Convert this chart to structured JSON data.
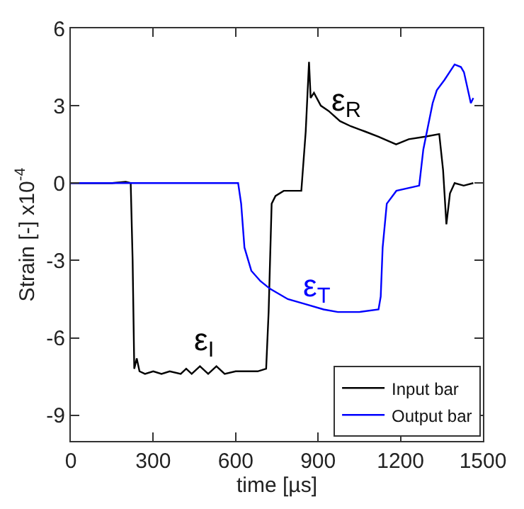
{
  "chart_data": {
    "type": "line",
    "xlabel": "time [µs]",
    "ylabel": "Strain [-] x10$^{-4}$",
    "xlim": [
      0,
      1500
    ],
    "ylim": [
      -10,
      6
    ],
    "xticks": [
      0,
      300,
      600,
      900,
      1200,
      1500
    ],
    "yticks": [
      -9,
      -6,
      -3,
      0,
      3,
      6
    ],
    "legend": "bottom right",
    "marker": "none",
    "line_style": "solid",
    "series": [
      {
        "name": "Input bar",
        "color": "#000000",
        "x": [
          0,
          150,
          200,
          218,
          225,
          231,
          240,
          250,
          270,
          300,
          330,
          360,
          400,
          420,
          440,
          470,
          500,
          530,
          560,
          600,
          640,
          680,
          711,
          720,
          731,
          745,
          775,
          839,
          855,
          867,
          873,
          885,
          910,
          938,
          980,
          1020,
          1071,
          1120,
          1184,
          1230,
          1290,
          1341,
          1355,
          1367,
          1380,
          1397,
          1430,
          1465
        ],
        "values": [
          0,
          0,
          0.05,
          0,
          -3,
          -7.2,
          -6.8,
          -7.3,
          -7.4,
          -7.3,
          -7.4,
          -7.3,
          -7.4,
          -7.2,
          -7.4,
          -7.1,
          -7.4,
          -7.1,
          -7.4,
          -7.3,
          -7.3,
          -7.3,
          -7.2,
          -5,
          -0.8,
          -0.5,
          -0.3,
          -0.3,
          2,
          4.7,
          3.3,
          3.5,
          3.0,
          2.8,
          2.4,
          2.2,
          2.0,
          1.8,
          1.5,
          1.7,
          1.8,
          1.9,
          0.5,
          -1.6,
          -0.4,
          0,
          -0.1,
          0
        ]
      },
      {
        "name": "Output bar",
        "color": "#0000ff",
        "x": [
          0,
          300,
          609,
          620,
          632,
          657,
          690,
          725,
          790,
          855,
          920,
          972,
          1050,
          1120,
          1128,
          1135,
          1150,
          1185,
          1268,
          1283,
          1317,
          1332,
          1360,
          1397,
          1420,
          1431,
          1456,
          1465
        ],
        "values": [
          0,
          0,
          0,
          -0.8,
          -2.5,
          -3.4,
          -3.8,
          -4.1,
          -4.5,
          -4.7,
          -4.9,
          -5.0,
          -5.0,
          -4.9,
          -4.4,
          -2.5,
          -0.8,
          -0.3,
          -0.1,
          1.3,
          3.1,
          3.6,
          4.0,
          4.6,
          4.5,
          4.3,
          3.1,
          3.3
        ]
      }
    ],
    "annotations": [
      "ε$_{R}$",
      "ε$_{T}$",
      "ε$_{I}$"
    ]
  }
}
